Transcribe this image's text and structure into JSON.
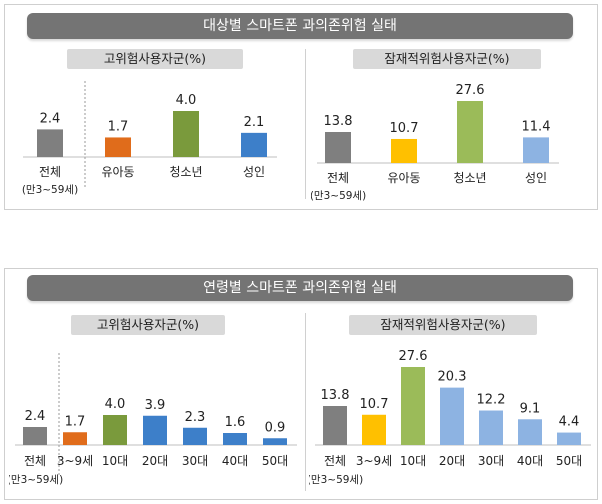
{
  "colors": {
    "banner": "#747474",
    "total": "#7f7f7f",
    "orange": "#e06c1b",
    "green": "#7a9a3c",
    "blue": "#3d7fc9",
    "yellow": "#ffc000",
    "lightgreen": "#9bbb59",
    "lightblue": "#8db3e2"
  },
  "panel1": {
    "banner": "대상별 스마트폰 과의존위험 실태"
  },
  "panel2": {
    "banner": "연령별 스마트폰 과의존위험 실태"
  },
  "chart_data": [
    {
      "type": "bar",
      "title": "고위험사용자군(%)",
      "categories": [
        "전체",
        "유아동",
        "청소년",
        "성인"
      ],
      "sublabels": [
        "(만3~59세)",
        "",
        "",
        ""
      ],
      "values": [
        2.4,
        1.7,
        4.0,
        2.1
      ],
      "value_labels": [
        "2.4",
        "1.7",
        "4.0",
        "2.1"
      ],
      "colors": [
        "#7f7f7f",
        "#e06c1b",
        "#7a9a3c",
        "#3d7fc9"
      ]
    },
    {
      "type": "bar",
      "title": "잠재적위험사용자군(%)",
      "categories": [
        "전체",
        "유아동",
        "청소년",
        "성인"
      ],
      "sublabels": [
        "(만3~59세)",
        "",
        "",
        ""
      ],
      "values": [
        13.8,
        10.7,
        27.6,
        11.4
      ],
      "value_labels": [
        "13.8",
        "10.7",
        "27.6",
        "11.4"
      ],
      "colors": [
        "#7f7f7f",
        "#ffc000",
        "#9bbb59",
        "#8db3e2"
      ]
    },
    {
      "type": "bar",
      "title": "고위험사용자군(%)",
      "categories": [
        "전체",
        "3~9세",
        "10대",
        "20대",
        "30대",
        "40대",
        "50대"
      ],
      "sublabels": [
        "(만3~59세)",
        "",
        "",
        "",
        "",
        "",
        ""
      ],
      "values": [
        2.4,
        1.7,
        4.0,
        3.9,
        2.3,
        1.6,
        0.9
      ],
      "value_labels": [
        "2.4",
        "1.7",
        "4.0",
        "3.9",
        "2.3",
        "1.6",
        "0.9"
      ],
      "colors": [
        "#7f7f7f",
        "#e06c1b",
        "#7a9a3c",
        "#3d7fc9",
        "#3d7fc9",
        "#3d7fc9",
        "#3d7fc9"
      ]
    },
    {
      "type": "bar",
      "title": "잠재적위험사용자군(%)",
      "categories": [
        "전체",
        "3~9세",
        "10대",
        "20대",
        "30대",
        "40대",
        "50대"
      ],
      "sublabels": [
        "(만3~59세)",
        "",
        "",
        "",
        "",
        "",
        ""
      ],
      "values": [
        13.8,
        10.7,
        27.6,
        20.3,
        12.2,
        9.1,
        4.4
      ],
      "value_labels": [
        "13.8",
        "10.7",
        "27.6",
        "20.3",
        "12.2",
        "9.1",
        "4.4"
      ],
      "colors": [
        "#7f7f7f",
        "#ffc000",
        "#9bbb59",
        "#8db3e2",
        "#8db3e2",
        "#8db3e2",
        "#8db3e2"
      ]
    }
  ]
}
